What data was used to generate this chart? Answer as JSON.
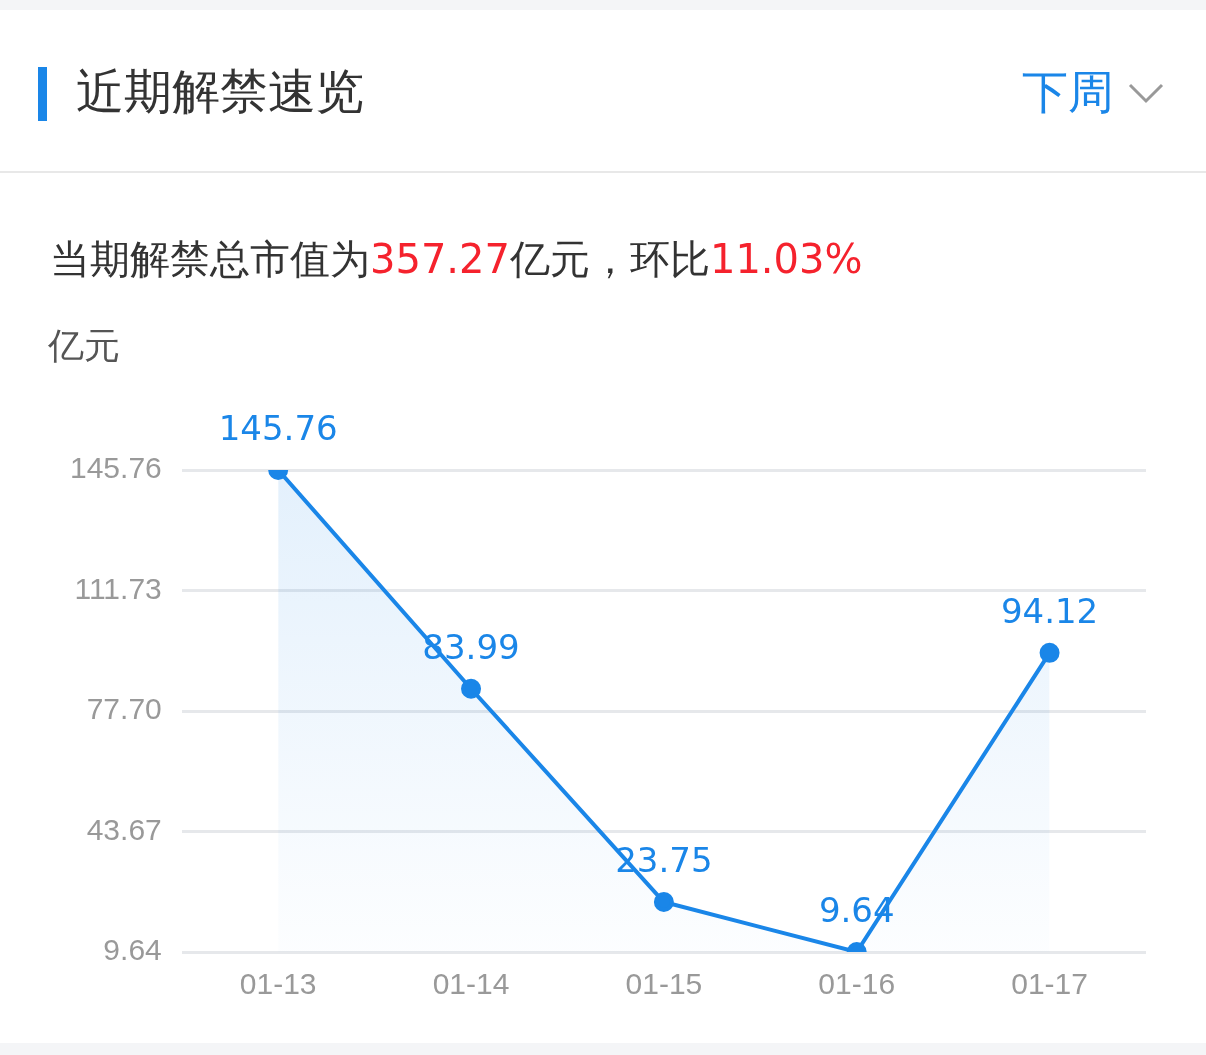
{
  "chart_data": {
    "type": "area",
    "title": "近期解禁速览",
    "subtitle": "当期解禁总市值为357.27亿元，环比11.03%",
    "ylabel": "亿元",
    "annotations": [
      "下周"
    ],
    "categories": [
      "01-13",
      "01-14",
      "01-15",
      "01-16",
      "01-17"
    ],
    "series": [
      {
        "color": "#1a86e8",
        "values": [
          145.76,
          83.99,
          23.75,
          9.64,
          94.12
        ]
      }
    ],
    "ylim": [
      9.64,
      145.76
    ],
    "yticks": [
      {
        "value": 9.64,
        "label": "9.64"
      },
      {
        "value": 43.67,
        "label": "43.67"
      },
      {
        "value": 77.7,
        "label": "77.70"
      },
      {
        "value": 111.73,
        "label": "111.73"
      },
      {
        "value": 145.76,
        "label": "145.76"
      }
    ],
    "grid": "y",
    "marker": "circle",
    "data_labels": true,
    "legend": false
  }
}
